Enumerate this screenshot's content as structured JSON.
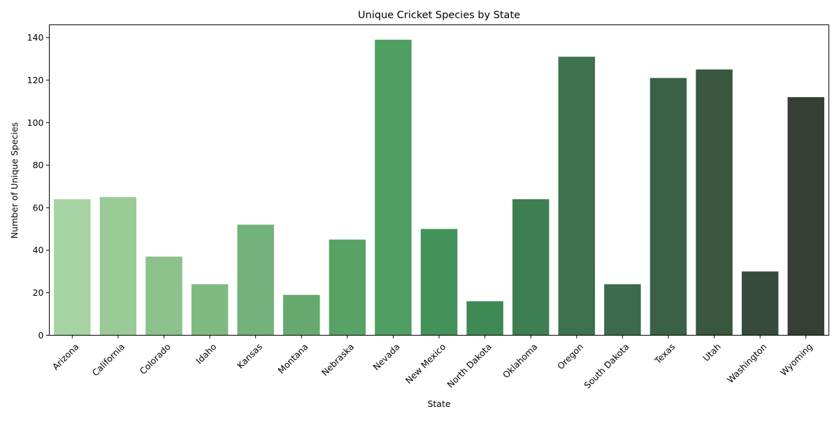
{
  "chart_data": {
    "type": "bar",
    "title": "Unique Cricket Species by State",
    "xlabel": "State",
    "ylabel": "Number of Unique Species",
    "categories": [
      "Arizona",
      "California",
      "Colorado",
      "Idaho",
      "Kansas",
      "Montana",
      "Nebraska",
      "Nevada",
      "New Mexico",
      "North Dakota",
      "Oklahoma",
      "Oregon",
      "South Dakota",
      "Texas",
      "Utah",
      "Washington",
      "Wyoming"
    ],
    "values": [
      64,
      65,
      37,
      24,
      52,
      19,
      45,
      139,
      50,
      16,
      64,
      131,
      24,
      121,
      125,
      30,
      112
    ],
    "colors": [
      "#a6d3a2",
      "#9acb96",
      "#8cc18b",
      "#7fbb80",
      "#73b27a",
      "#65a96f",
      "#58a266",
      "#4f9e62",
      "#42925a",
      "#3f8954",
      "#3e7f51",
      "#3e724e",
      "#3c6a4b",
      "#3a6146",
      "#39563f",
      "#374b3c",
      "#353f35"
    ],
    "ylim": [
      0,
      146
    ],
    "yticks": [
      0,
      20,
      40,
      60,
      80,
      100,
      120,
      140
    ],
    "grid": false,
    "legend": "none"
  }
}
